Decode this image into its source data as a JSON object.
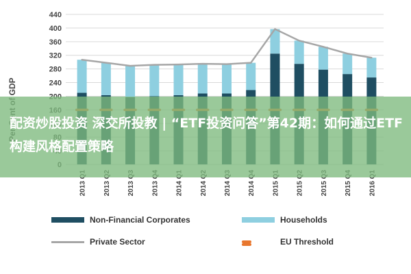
{
  "banner": {
    "text": "配资炒股投资 深交所投教 | “ETF投资问答”第42期：如何通过ETF构建风格配置策略"
  },
  "colors": {
    "nfc": "#1f4e62",
    "households": "#8ecfe0",
    "private_sector": "#a6a6a6",
    "eu_threshold": "#e8772e",
    "grid": "#d9d9d9",
    "axis_text": "#444444"
  },
  "chart_data": {
    "type": "bar",
    "stacked": true,
    "ylabel": "Per Cent of GDP",
    "ylim": [
      0,
      440
    ],
    "yticks": [
      0,
      40,
      80,
      120,
      160,
      200,
      240,
      280,
      320,
      360,
      400,
      440
    ],
    "grid": true,
    "legend_position": "bottom",
    "categories": [
      "2013 Q1",
      "2013 Q2",
      "2013 Q3",
      "2013 Q4",
      "2014 Q1",
      "2014 Q2",
      "2014 Q3",
      "2014 Q4",
      "2015 Q1",
      "2015 Q2",
      "2015 Q3",
      "2015 Q4",
      "2016 Q1"
    ],
    "series": [
      {
        "name": "Non-Financial Corporates",
        "kind": "bar",
        "values": [
          210,
          203,
          197,
          200,
          203,
          208,
          208,
          218,
          325,
          295,
          278,
          265,
          255
        ]
      },
      {
        "name": "Households",
        "kind": "bar",
        "values": [
          97,
          95,
          92,
          92,
          90,
          87,
          86,
          80,
          72,
          68,
          67,
          60,
          58
        ]
      },
      {
        "name": "Private Sector",
        "kind": "line",
        "values": [
          307,
          298,
          289,
          292,
          293,
          295,
          294,
          298,
          397,
          363,
          345,
          325,
          313
        ]
      },
      {
        "name": "EU Threshold",
        "kind": "dashed",
        "values": [
          160,
          160,
          160,
          160,
          160,
          160,
          160,
          160,
          160,
          160,
          160,
          160,
          160
        ]
      }
    ]
  }
}
